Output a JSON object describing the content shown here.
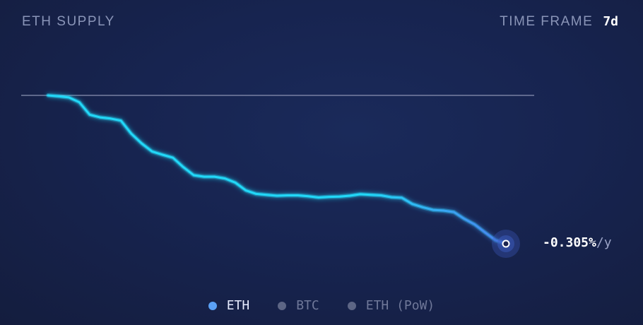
{
  "header": {
    "title": "ETH SUPPLY",
    "timeframe_label": "TIME FRAME",
    "timeframe_value": "7d"
  },
  "rate": {
    "value": "-0.305%",
    "unit": "/y"
  },
  "legend": [
    {
      "label": "ETH",
      "color": "#5aa0f5",
      "active": true
    },
    {
      "label": "BTC",
      "color": "#5d6685",
      "active": false
    },
    {
      "label": "ETH (PoW)",
      "color": "#5d6685",
      "active": false
    }
  ],
  "colors": {
    "line_start": "#22d8f8",
    "line_end": "#4a7fef",
    "baseline": "#8a92b2",
    "background": "#172450"
  },
  "chart_data": {
    "type": "line",
    "title": "",
    "xlabel": "",
    "ylabel": "",
    "grid": false,
    "series": [
      {
        "name": "ETH",
        "values": [
          100,
          99.7,
          99.3,
          97.7,
          93.5,
          92.6,
          92.2,
          91.5,
          87.1,
          83.8,
          81.1,
          80.0,
          79.0,
          75.8,
          73.1,
          72.6,
          72.6,
          72.0,
          70.6,
          68.0,
          66.8,
          66.5,
          66.2,
          66.3,
          66.3,
          66.0,
          65.6,
          65.8,
          65.9,
          66.2,
          66.7,
          66.5,
          66.3,
          65.7,
          65.5,
          63.4,
          62.3,
          61.4,
          61.2,
          60.7,
          58.4,
          56.5,
          53.8,
          51.2,
          50.0
        ]
      }
    ],
    "baseline": 100
  }
}
